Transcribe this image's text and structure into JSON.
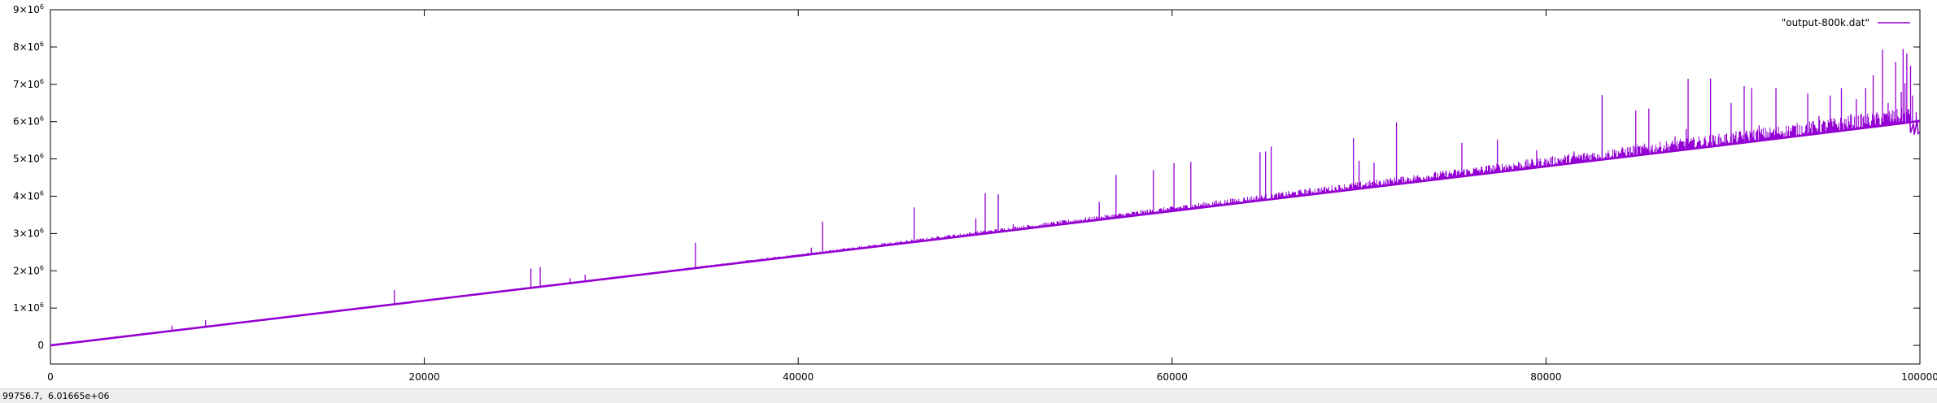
{
  "chart_data": {
    "type": "line",
    "title": "",
    "xlabel": "",
    "ylabel": "",
    "xlim": [
      0,
      100000
    ],
    "ylim": [
      -500000,
      9000000
    ],
    "x_ticks": [
      {
        "value": 0,
        "label": "0"
      },
      {
        "value": 20000,
        "label": "20000"
      },
      {
        "value": 40000,
        "label": "40000"
      },
      {
        "value": 60000,
        "label": "60000"
      },
      {
        "value": 80000,
        "label": "80000"
      },
      {
        "value": 100000,
        "label": "100000"
      }
    ],
    "y_ticks": [
      {
        "value": 0,
        "label": "0",
        "sup": ""
      },
      {
        "value": 1000000,
        "label": "1×10",
        "sup": "6"
      },
      {
        "value": 2000000,
        "label": "2×10",
        "sup": "6"
      },
      {
        "value": 3000000,
        "label": "3×10",
        "sup": "6"
      },
      {
        "value": 4000000,
        "label": "4×10",
        "sup": "6"
      },
      {
        "value": 5000000,
        "label": "5×10",
        "sup": "6"
      },
      {
        "value": 6000000,
        "label": "6×10",
        "sup": "6"
      },
      {
        "value": 7000000,
        "label": "7×10",
        "sup": "6"
      },
      {
        "value": 8000000,
        "label": "8×10",
        "sup": "6"
      },
      {
        "value": 9000000,
        "label": "9×10",
        "sup": "6"
      }
    ],
    "grid": false,
    "legend_position": "top-right",
    "series": [
      {
        "name": "\"output-800k.dat\"",
        "color": "#9400d3",
        "trend": [
          [
            0,
            0
          ],
          [
            10000,
            600000
          ],
          [
            20000,
            1200000
          ],
          [
            30000,
            1800000
          ],
          [
            40000,
            2400000
          ],
          [
            50000,
            3000000
          ],
          [
            60000,
            3600000
          ],
          [
            70000,
            4200000
          ],
          [
            80000,
            4800000
          ],
          [
            90000,
            5400000
          ],
          [
            99000,
            5950000
          ],
          [
            100000,
            6020000
          ]
        ],
        "end_segment": [
          [
            99400,
            5950000
          ],
          [
            99450,
            6200000
          ],
          [
            99500,
            5700000
          ],
          [
            99650,
            5950000
          ],
          [
            99700,
            5650000
          ],
          [
            99850,
            6050000
          ],
          [
            99900,
            5680000
          ],
          [
            100000,
            5720000
          ]
        ],
        "spikes": [
          [
            6500,
            530000
          ],
          [
            8300,
            680000
          ],
          [
            18400,
            1480000
          ],
          [
            25700,
            2060000
          ],
          [
            26200,
            2100000
          ],
          [
            27800,
            1800000
          ],
          [
            28600,
            1900000
          ],
          [
            34500,
            2750000
          ],
          [
            40700,
            2620000
          ],
          [
            41300,
            3320000
          ],
          [
            46200,
            3700000
          ],
          [
            48000,
            2950000
          ],
          [
            49500,
            3400000
          ],
          [
            50000,
            4080000
          ],
          [
            50700,
            4050000
          ],
          [
            51500,
            3250000
          ],
          [
            56100,
            3850000
          ],
          [
            57000,
            4570000
          ],
          [
            59000,
            4700000
          ],
          [
            60100,
            4890000
          ],
          [
            61000,
            4920000
          ],
          [
            64700,
            5180000
          ],
          [
            65000,
            5200000
          ],
          [
            65300,
            5330000
          ],
          [
            69700,
            5560000
          ],
          [
            70000,
            4950000
          ],
          [
            70800,
            4900000
          ],
          [
            72000,
            5980000
          ],
          [
            75500,
            5430000
          ],
          [
            77400,
            5520000
          ],
          [
            79500,
            5230000
          ],
          [
            81500,
            5200000
          ],
          [
            82200,
            5150000
          ],
          [
            83000,
            6710000
          ],
          [
            84800,
            6300000
          ],
          [
            85500,
            6350000
          ],
          [
            86900,
            5600000
          ],
          [
            87500,
            5800000
          ],
          [
            87600,
            7150000
          ],
          [
            88800,
            7150000
          ],
          [
            89900,
            6500000
          ],
          [
            90600,
            6950000
          ],
          [
            91000,
            6900000
          ],
          [
            91400,
            5900000
          ],
          [
            92300,
            6900000
          ],
          [
            93200,
            5900000
          ],
          [
            94000,
            6760000
          ],
          [
            94600,
            6150000
          ],
          [
            95200,
            6700000
          ],
          [
            95800,
            6900000
          ],
          [
            96300,
            6200000
          ],
          [
            96600,
            6600000
          ],
          [
            97100,
            6900000
          ],
          [
            97500,
            7250000
          ],
          [
            98000,
            7930000
          ],
          [
            98300,
            6500000
          ],
          [
            98700,
            7600000
          ],
          [
            99000,
            6800000
          ],
          [
            99100,
            7950000
          ],
          [
            99200,
            7030000
          ],
          [
            99300,
            7820000
          ],
          [
            99500,
            7500000
          ],
          [
            99600,
            6700000
          ],
          [
            99800,
            6250000
          ]
        ]
      }
    ]
  },
  "status": {
    "coordinates": "99756.7,  6.01665e+06"
  }
}
